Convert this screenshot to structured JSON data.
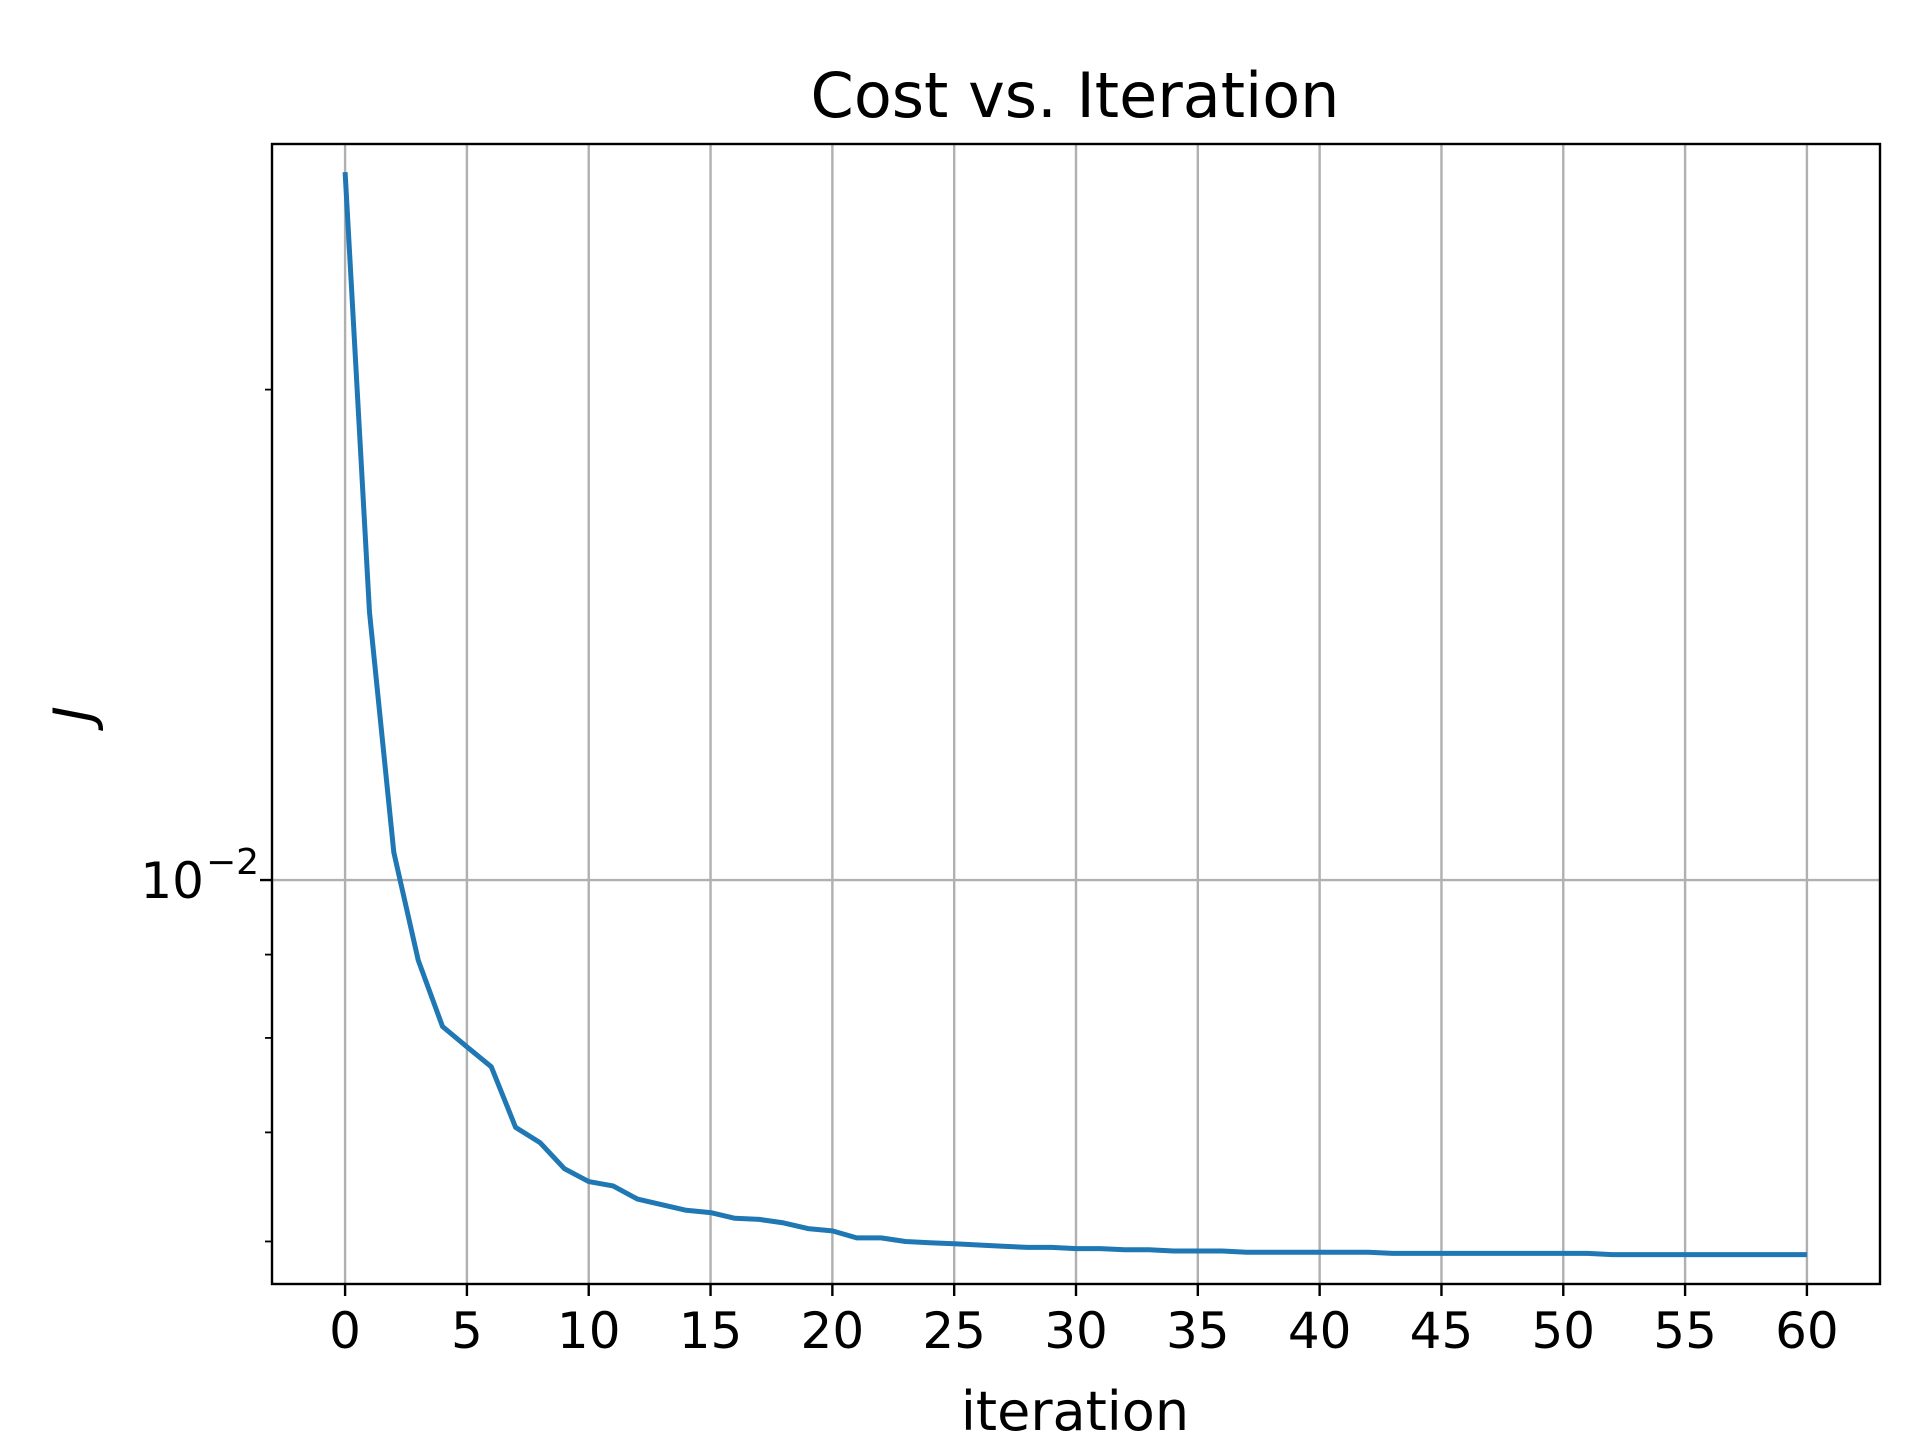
{
  "chart_data": {
    "type": "line",
    "title": "Cost vs. Iteration",
    "xlabel": "iteration",
    "ylabel": "J",
    "yscale": "log",
    "xlim": [
      -3,
      63
    ],
    "ylim": [
      0.00565,
      0.0283
    ],
    "grid": true,
    "xticks": [
      0,
      5,
      10,
      15,
      20,
      25,
      30,
      35,
      40,
      45,
      50,
      55,
      60
    ],
    "yticks": [
      {
        "value": 0.01,
        "base": "10",
        "exponent": "−2"
      }
    ],
    "y_minor_ticks": [
      0.006,
      0.007,
      0.008,
      0.009,
      0.02
    ],
    "line_color": "#1f77b4",
    "series": [
      {
        "x": [
          0,
          1,
          2,
          3,
          4,
          5,
          6,
          7,
          8,
          9,
          10,
          11,
          12,
          13,
          14,
          15,
          16,
          17,
          18,
          19,
          20,
          21,
          22,
          23,
          24,
          25,
          26,
          27,
          28,
          29,
          30,
          31,
          32,
          33,
          34,
          35,
          36,
          37,
          38,
          39,
          40,
          41,
          42,
          43,
          44,
          45,
          46,
          47,
          48,
          49,
          50,
          51,
          52,
          53,
          54,
          55,
          56,
          57,
          58,
          59,
          60
        ],
        "y": [
          0.0272,
          0.0146,
          0.0104,
          0.00893,
          0.00813,
          0.0079,
          0.00768,
          0.00705,
          0.0069,
          0.00665,
          0.00653,
          0.00649,
          0.00637,
          0.00632,
          0.00627,
          0.00625,
          0.0062,
          0.00619,
          0.00616,
          0.00611,
          0.00609,
          0.00603,
          0.00603,
          0.006,
          0.00599,
          0.00598,
          0.00597,
          0.00596,
          0.00595,
          0.00595,
          0.00594,
          0.00594,
          0.00593,
          0.00593,
          0.00592,
          0.00592,
          0.00592,
          0.00591,
          0.00591,
          0.00591,
          0.00591,
          0.00591,
          0.00591,
          0.0059,
          0.0059,
          0.0059,
          0.0059,
          0.0059,
          0.0059,
          0.0059,
          0.0059,
          0.0059,
          0.00589,
          0.00589,
          0.00589,
          0.00589,
          0.00589,
          0.00589,
          0.00589,
          0.00589,
          0.00589
        ]
      }
    ]
  }
}
